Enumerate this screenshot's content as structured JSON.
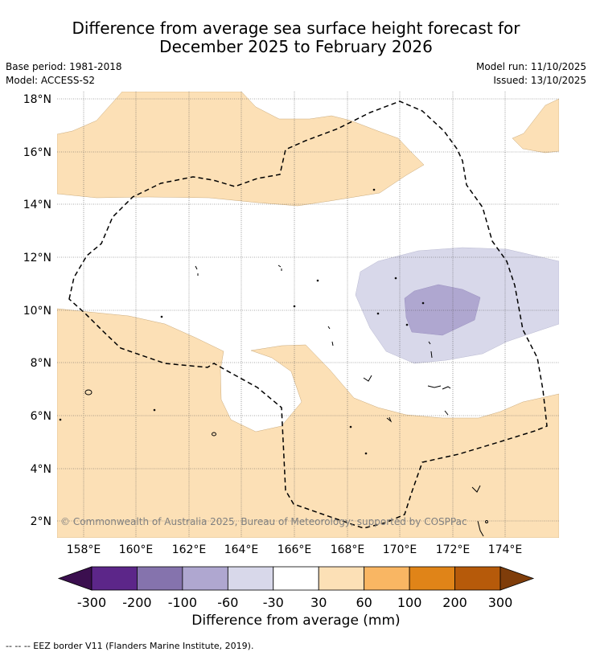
{
  "title": {
    "line1": "Difference from average sea surface height forecast for",
    "line2": "December 2025 to February 2026"
  },
  "meta": {
    "base_period": "Base period: 1981-2018",
    "model": "Model: ACCESS-S2",
    "model_run": "Model run: 11/10/2025",
    "issued": "Issued: 13/10/2025"
  },
  "map": {
    "lat_labels": [
      "18°N",
      "16°N",
      "14°N",
      "12°N",
      "10°N",
      "8°N",
      "6°N",
      "4°N",
      "2°N"
    ],
    "lon_labels": [
      "158°E",
      "160°E",
      "162°E",
      "164°E",
      "166°E",
      "168°E",
      "170°E",
      "172°E",
      "174°E"
    ],
    "copyright": "© Commonwealth of Australia 2025, Bureau of Meteorology; supported by COSPPac",
    "colors": {
      "land_ocean_bg": "#ffffff",
      "pos_30_60": "#fce0b6",
      "neg_30_60": "#d8d8ea",
      "neg_60_100": "#afa7d0",
      "grid": "#555555"
    }
  },
  "colorbar": {
    "tick_labels": [
      "-300",
      "-200",
      "-100",
      "-60",
      "-30",
      "30",
      "60",
      "100",
      "200",
      "300"
    ],
    "colors": [
      "#3b0f4f",
      "#5c2689",
      "#8573ad",
      "#afa7d0",
      "#d8d8ea",
      "#ffffff",
      "#fce0b6",
      "#f9b663",
      "#e08418",
      "#b65a0a",
      "#7f3d0a"
    ],
    "title": "Difference from average (mm)"
  },
  "footer": {
    "legend": "--  --  -- EEZ border V11 (Flanders Marine Institute, 2019)."
  }
}
